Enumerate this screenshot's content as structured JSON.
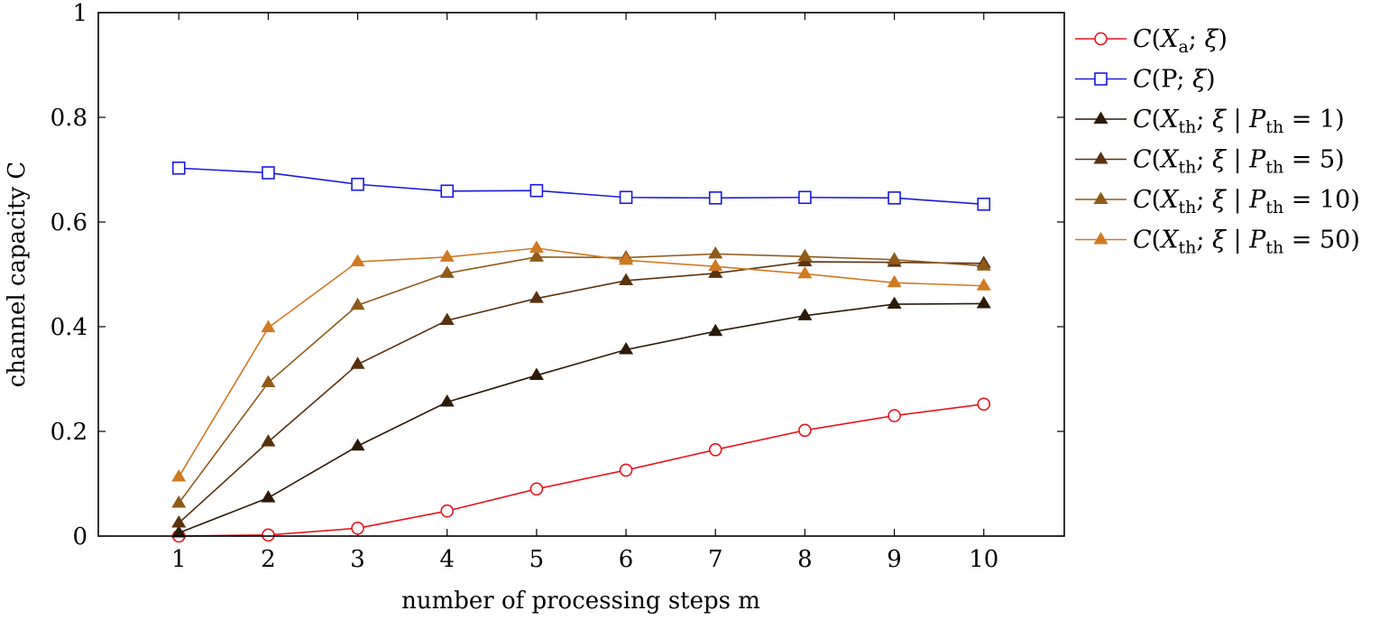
{
  "chart_data": {
    "type": "line",
    "title": "",
    "xlabel": "number of processing steps m",
    "ylabel": "channel capacity C",
    "x": [
      1,
      2,
      3,
      4,
      5,
      6,
      7,
      8,
      9,
      10
    ],
    "xlim": [
      0.1,
      10.9
    ],
    "ylim": [
      0,
      1
    ],
    "xticks": [
      1,
      2,
      3,
      4,
      5,
      6,
      7,
      8,
      9,
      10
    ],
    "yticks": [
      0,
      0.2,
      0.4,
      0.6,
      0.8,
      1
    ],
    "ytick_labels": [
      "0",
      "0.2",
      "0.4",
      "0.6",
      "0.8",
      "1"
    ],
    "grid": false,
    "legend_position": "outside-top-right",
    "series": [
      {
        "name": "C(Xa; ξ)",
        "color": "#e8141e",
        "marker": "circle",
        "values": [
          0.0,
          0.002,
          0.015,
          0.048,
          0.09,
          0.126,
          0.165,
          0.202,
          0.23,
          0.252
        ]
      },
      {
        "name": "C(P; ξ)",
        "color": "#1a1ae0",
        "marker": "square",
        "values": [
          0.703,
          0.694,
          0.672,
          0.659,
          0.66,
          0.647,
          0.646,
          0.647,
          0.646,
          0.634
        ]
      },
      {
        "name": "C(Xth; ξ | Pth = 1)",
        "color": "#2b1a08",
        "marker": "triangle",
        "values": [
          0.006,
          0.073,
          0.172,
          0.256,
          0.307,
          0.356,
          0.391,
          0.421,
          0.443,
          0.444
        ]
      },
      {
        "name": "C(Xth; ξ | Pth = 5)",
        "color": "#5a3210",
        "marker": "triangle",
        "values": [
          0.025,
          0.18,
          0.328,
          0.412,
          0.454,
          0.488,
          0.502,
          0.524,
          0.523,
          0.521
        ]
      },
      {
        "name": "C(Xth; ξ | Pth = 10)",
        "color": "#8f5a1a",
        "marker": "triangle",
        "values": [
          0.063,
          0.293,
          0.441,
          0.502,
          0.533,
          0.532,
          0.539,
          0.534,
          0.528,
          0.516
        ]
      },
      {
        "name": "C(Xth; ξ | Pth = 50)",
        "color": "#d07a22",
        "marker": "triangle",
        "values": [
          0.113,
          0.398,
          0.524,
          0.533,
          0.55,
          0.527,
          0.515,
          0.501,
          0.484,
          0.478
        ]
      }
    ]
  }
}
